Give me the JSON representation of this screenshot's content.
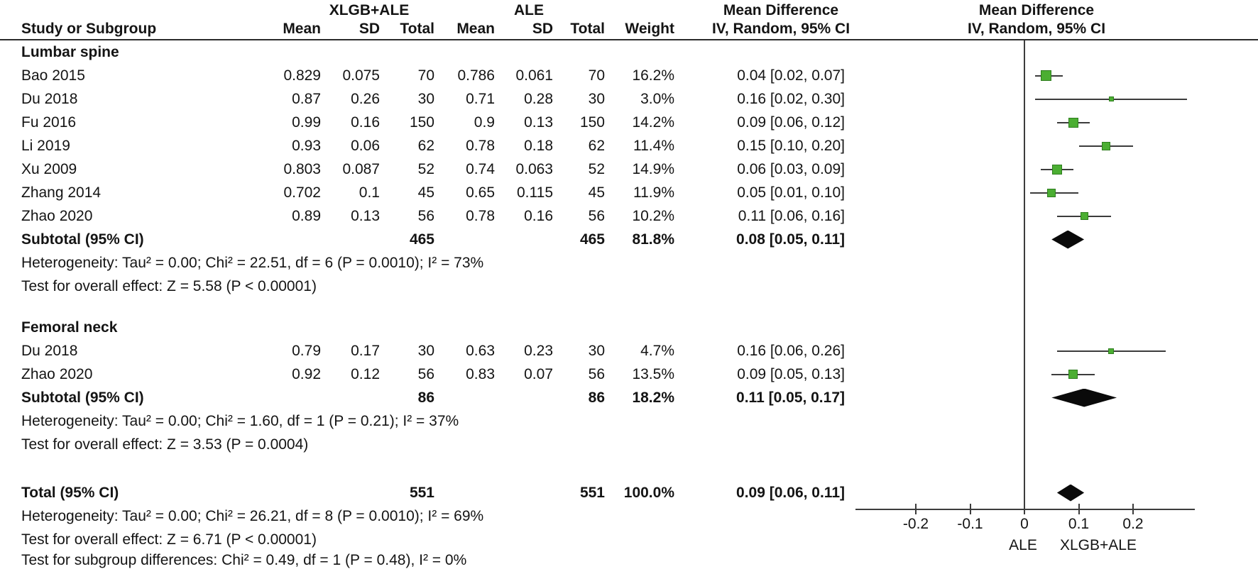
{
  "header": {
    "study": "Study or Subgroup",
    "group1": "XLGB+ALE",
    "group2": "ALE",
    "mean": "Mean",
    "sd": "SD",
    "total": "Total",
    "weight": "Weight",
    "effect": "Mean Difference",
    "method": "IV, Random, 95% CI"
  },
  "colors": {
    "marker_green": "#4bae32",
    "marker_border": "#2e7d1e",
    "diamond_black": "#0a0a0a",
    "line_gray": "#3c3c3c"
  },
  "chart_data": {
    "type": "forest",
    "title": "Mean Difference, IV, Random, 95% CI",
    "axis": {
      "ticks": [
        -0.2,
        -0.1,
        0,
        0.1,
        0.2
      ],
      "range": [
        -0.31,
        0.31
      ],
      "left_label": "ALE",
      "right_label": "XLGB+ALE"
    },
    "sections": [
      {
        "name": "Lumbar spine",
        "studies": [
          {
            "study": "Bao 2015",
            "mean1": "0.829",
            "sd1": "0.075",
            "total1": "70",
            "mean2": "0.786",
            "sd2": "0.061",
            "total2": "70",
            "weight": "16.2%",
            "weight_val": 16.2,
            "ci_text": "0.04 [0.02, 0.07]",
            "est": 0.04,
            "lo": 0.02,
            "hi": 0.07
          },
          {
            "study": "Du 2018",
            "mean1": "0.87",
            "sd1": "0.26",
            "total1": "30",
            "mean2": "0.71",
            "sd2": "0.28",
            "total2": "30",
            "weight": "3.0%",
            "weight_val": 3.0,
            "ci_text": "0.16 [0.02, 0.30]",
            "est": 0.16,
            "lo": 0.02,
            "hi": 0.3
          },
          {
            "study": "Fu 2016",
            "mean1": "0.99",
            "sd1": "0.16",
            "total1": "150",
            "mean2": "0.9",
            "sd2": "0.13",
            "total2": "150",
            "weight": "14.2%",
            "weight_val": 14.2,
            "ci_text": "0.09 [0.06, 0.12]",
            "est": 0.09,
            "lo": 0.06,
            "hi": 0.12
          },
          {
            "study": "Li 2019",
            "mean1": "0.93",
            "sd1": "0.06",
            "total1": "62",
            "mean2": "0.78",
            "sd2": "0.18",
            "total2": "62",
            "weight": "11.4%",
            "weight_val": 11.4,
            "ci_text": "0.15 [0.10, 0.20]",
            "est": 0.15,
            "lo": 0.1,
            "hi": 0.2
          },
          {
            "study": "Xu 2009",
            "mean1": "0.803",
            "sd1": "0.087",
            "total1": "52",
            "mean2": "0.74",
            "sd2": "0.063",
            "total2": "52",
            "weight": "14.9%",
            "weight_val": 14.9,
            "ci_text": "0.06 [0.03, 0.09]",
            "est": 0.06,
            "lo": 0.03,
            "hi": 0.09
          },
          {
            "study": "Zhang 2014",
            "mean1": "0.702",
            "sd1": "0.1",
            "total1": "45",
            "mean2": "0.65",
            "sd2": "0.115",
            "total2": "45",
            "weight": "11.9%",
            "weight_val": 11.9,
            "ci_text": "0.05 [0.01, 0.10]",
            "est": 0.05,
            "lo": 0.01,
            "hi": 0.1
          },
          {
            "study": "Zhao 2020",
            "mean1": "0.89",
            "sd1": "0.13",
            "total1": "56",
            "mean2": "0.78",
            "sd2": "0.16",
            "total2": "56",
            "weight": "10.2%",
            "weight_val": 10.2,
            "ci_text": "0.11 [0.06, 0.16]",
            "est": 0.11,
            "lo": 0.06,
            "hi": 0.16
          }
        ],
        "subtotal": {
          "label": "Subtotal (95% CI)",
          "total1": "465",
          "total2": "465",
          "weight": "81.8%",
          "ci_text": "0.08 [0.05, 0.11]",
          "est": 0.08,
          "lo": 0.05,
          "hi": 0.11
        },
        "heterogeneity": "Heterogeneity: Tau² = 0.00; Chi² = 22.51, df = 6 (P = 0.0010); I² = 73%",
        "overall_effect": "Test for overall effect: Z = 5.58 (P < 0.00001)"
      },
      {
        "name": "Femoral neck",
        "studies": [
          {
            "study": "Du 2018",
            "mean1": "0.79",
            "sd1": "0.17",
            "total1": "30",
            "mean2": "0.63",
            "sd2": "0.23",
            "total2": "30",
            "weight": "4.7%",
            "weight_val": 4.7,
            "ci_text": "0.16 [0.06, 0.26]",
            "est": 0.16,
            "lo": 0.06,
            "hi": 0.26
          },
          {
            "study": "Zhao 2020",
            "mean1": "0.92",
            "sd1": "0.12",
            "total1": "56",
            "mean2": "0.83",
            "sd2": "0.07",
            "total2": "56",
            "weight": "13.5%",
            "weight_val": 13.5,
            "ci_text": "0.09 [0.05, 0.13]",
            "est": 0.09,
            "lo": 0.05,
            "hi": 0.13
          }
        ],
        "subtotal": {
          "label": "Subtotal (95% CI)",
          "total1": "86",
          "total2": "86",
          "weight": "18.2%",
          "ci_text": "0.11 [0.05, 0.17]",
          "est": 0.11,
          "lo": 0.05,
          "hi": 0.17
        },
        "heterogeneity": "Heterogeneity: Tau² = 0.00; Chi² = 1.60, df = 1 (P = 0.21); I² = 37%",
        "overall_effect": "Test for overall effect: Z = 3.53 (P = 0.0004)"
      }
    ],
    "total": {
      "label": "Total (95% CI)",
      "total1": "551",
      "total2": "551",
      "weight": "100.0%",
      "ci_text": "0.09 [0.06, 0.11]",
      "est": 0.09,
      "lo": 0.06,
      "hi": 0.11
    },
    "total_heterogeneity": "Heterogeneity: Tau² = 0.00; Chi² = 26.21, df = 8 (P = 0.0010); I² = 69%",
    "total_overall_effect": "Test for overall effect: Z = 6.71 (P < 0.00001)",
    "subgroup_difference": "Test for subgroup differences: Chi² = 0.49, df = 1 (P = 0.48), I² = 0%"
  }
}
